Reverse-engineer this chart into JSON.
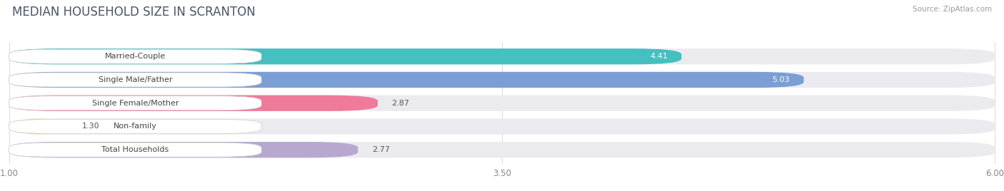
{
  "title": "MEDIAN HOUSEHOLD SIZE IN SCRANTON",
  "source": "Source: ZipAtlas.com",
  "categories": [
    "Married-Couple",
    "Single Male/Father",
    "Single Female/Mother",
    "Non-family",
    "Total Households"
  ],
  "values": [
    4.41,
    5.03,
    2.87,
    1.3,
    2.77
  ],
  "bar_colors": [
    "#45BFBF",
    "#7B9FD4",
    "#F07A9A",
    "#F5C98A",
    "#B8A8D0"
  ],
  "xlim_min": 1.0,
  "xlim_max": 6.0,
  "xticks": [
    1.0,
    3.5,
    6.0
  ],
  "background_color": "#ffffff",
  "bar_bg_color": "#ebebef",
  "title_color": "#4a5568",
  "source_color": "#999999",
  "label_bg_color": "#ffffff",
  "title_fontsize": 12,
  "label_fontsize": 8.0,
  "value_fontsize": 8.0,
  "tick_fontsize": 8.5
}
